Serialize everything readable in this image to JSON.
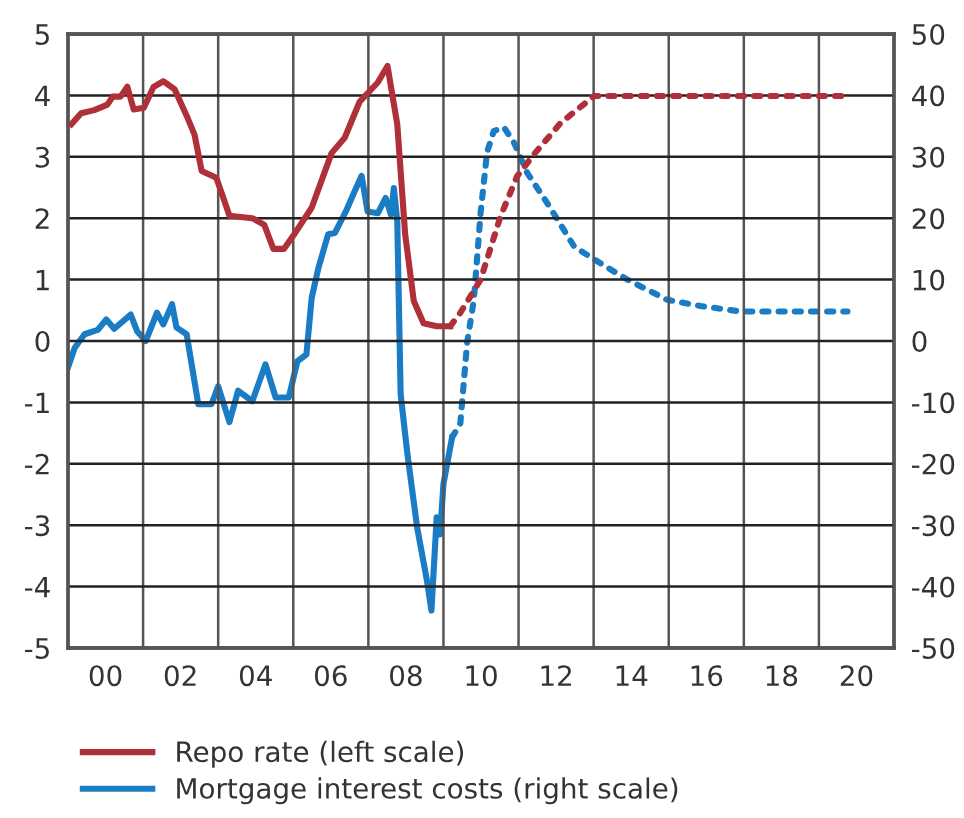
{
  "chart_data": {
    "type": "line",
    "xlim": [
      1999,
      2021
    ],
    "xticks": [
      {
        "value": 2000,
        "label": "00"
      },
      {
        "value": 2001,
        "label": null
      },
      {
        "value": 2002,
        "label": "02"
      },
      {
        "value": 2003,
        "label": null
      },
      {
        "value": 2004,
        "label": "04"
      },
      {
        "value": 2005,
        "label": null
      },
      {
        "value": 2006,
        "label": "06"
      },
      {
        "value": 2007,
        "label": null
      },
      {
        "value": 2008,
        "label": "08"
      },
      {
        "value": 2009,
        "label": null
      },
      {
        "value": 2010,
        "label": "10"
      },
      {
        "value": 2011,
        "label": null
      },
      {
        "value": 2012,
        "label": "12"
      },
      {
        "value": 2013,
        "label": null
      },
      {
        "value": 2014,
        "label": "14"
      },
      {
        "value": 2015,
        "label": null
      },
      {
        "value": 2016,
        "label": "16"
      },
      {
        "value": 2017,
        "label": null
      },
      {
        "value": 2018,
        "label": "18"
      },
      {
        "value": 2019,
        "label": null
      },
      {
        "value": 2020,
        "label": "20"
      }
    ],
    "ylim": [
      -5,
      5
    ],
    "yticks": [
      -5,
      -4,
      -3,
      -2,
      -1,
      0,
      1,
      2,
      3,
      4,
      5
    ],
    "y2lim": [
      -50,
      50
    ],
    "y2ticks": [
      -50,
      -40,
      -30,
      -20,
      -10,
      0,
      10,
      20,
      30,
      40,
      50
    ],
    "grid": true,
    "legend": "bottom",
    "series": [
      {
        "name": "Repo rate (left scale)",
        "color": "#b0303a",
        "line_style": "solid",
        "x": [
          1999.09,
          1999.35,
          1999.7,
          2000.05,
          2000.19,
          2000.4,
          2000.58,
          2000.75,
          2001.02,
          2001.28,
          2001.54,
          2001.84,
          2002.16,
          2002.37,
          2002.56,
          2002.95,
          2003.12,
          2003.3,
          2003.91,
          2004.23,
          2004.47,
          2004.75,
          2005.05,
          2005.49,
          2006.02,
          2006.37,
          2006.77,
          2007.25,
          2007.51,
          2007.77,
          2007.98,
          2008.21,
          2008.47,
          2008.82,
          2009.18
        ],
        "values": [
          3.53,
          3.71,
          3.76,
          3.85,
          3.98,
          3.98,
          4.14,
          3.77,
          3.8,
          4.14,
          4.23,
          4.1,
          3.67,
          3.36,
          2.77,
          2.66,
          2.36,
          2.04,
          2.0,
          1.89,
          1.5,
          1.5,
          1.76,
          2.17,
          3.06,
          3.31,
          3.9,
          4.21,
          4.48,
          3.53,
          1.74,
          0.65,
          0.29,
          0.24,
          0.24
        ]
      },
      {
        "color": "#b0303a",
        "line_style": "dotted",
        "x": [
          2009.18,
          2009.45,
          2009.99,
          2010.52,
          2010.96,
          2011.41,
          2012.12,
          2013.01,
          2019.76
        ],
        "values": [
          0.24,
          0.46,
          1.0,
          2.03,
          2.68,
          3.04,
          3.55,
          3.99,
          3.99
        ]
      },
      {
        "name": "Mortgage interest costs (right scale)",
        "color": "#1a7cc4",
        "line_style": "solid",
        "axis": "y2",
        "x": [
          1999.0,
          1999.18,
          1999.44,
          1999.79,
          2000.02,
          2000.23,
          2000.67,
          2000.84,
          2001.07,
          2001.37,
          2001.54,
          2001.77,
          2001.89,
          2002.16,
          2002.47,
          2002.82,
          2003.0,
          2003.3,
          2003.53,
          2003.91,
          2004.26,
          2004.53,
          2004.88,
          2005.11,
          2005.35,
          2005.49,
          2005.67,
          2005.93,
          2006.11,
          2006.4,
          2006.6,
          2006.82,
          2006.98,
          2007.25,
          2007.46,
          2007.6,
          2007.68,
          2007.77,
          2007.86,
          2008.04,
          2008.3,
          2008.56,
          2008.68,
          2008.82,
          2008.91,
          2009.0,
          2009.23
        ],
        "values": [
          -4.3,
          -1.1,
          1.1,
          1.8,
          3.5,
          2.0,
          4.3,
          1.6,
          0.0,
          4.6,
          2.7,
          6.0,
          2.2,
          1.1,
          -10.3,
          -10.3,
          -7.4,
          -13.2,
          -8.1,
          -9.8,
          -3.8,
          -9.2,
          -9.2,
          -3.3,
          -2.2,
          7.0,
          11.9,
          17.4,
          17.6,
          21.1,
          23.9,
          26.9,
          21.1,
          20.8,
          23.3,
          20.6,
          24.9,
          19.5,
          -8.7,
          -18.4,
          -30.4,
          -39.0,
          -43.9,
          -28.7,
          -31.5,
          -23.3,
          -15.7
        ]
      },
      {
        "color": "#1a7cc4",
        "line_style": "dotted",
        "axis": "y2",
        "x": [
          2009.23,
          2009.45,
          2009.63,
          2009.81,
          2009.99,
          2010.16,
          2010.34,
          2010.61,
          2010.88,
          2011.23,
          2011.76,
          2012.48,
          2013.01,
          2013.9,
          2014.96,
          2015.85,
          2016.92,
          2019.76
        ],
        "values": [
          -15.7,
          -13.4,
          -0.3,
          6.7,
          20.9,
          30.7,
          34.2,
          34.8,
          32.3,
          27.4,
          22.5,
          15.4,
          13.3,
          10.0,
          6.7,
          5.7,
          4.8,
          4.8
        ]
      }
    ]
  }
}
